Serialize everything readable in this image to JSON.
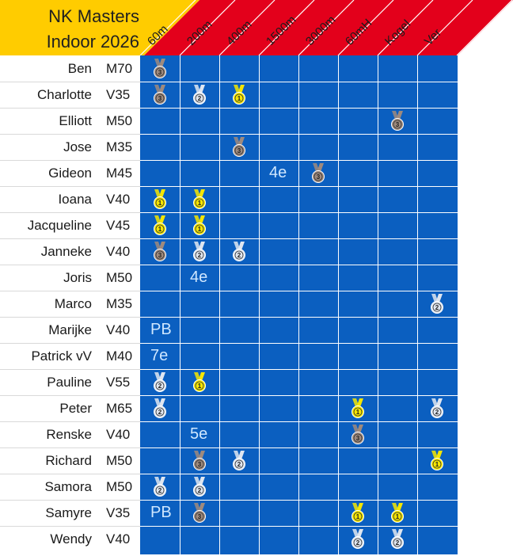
{
  "title": {
    "line1": "NK Masters",
    "line2": "Indoor 2026"
  },
  "columns": [
    "60m",
    "200m",
    "400m",
    "1500m",
    "3000m",
    "60mH",
    "Kogel",
    "Ver"
  ],
  "colors": {
    "title_bg": "#ffcc00",
    "header_bg": "#e3001b",
    "grid": "#0b5fc0",
    "gold": "#f5e600",
    "silver": "#dfe6f0",
    "bronze": "#9e8a7e"
  },
  "medal_labels": {
    "gold": "1",
    "silver": "2",
    "bronze": "3"
  },
  "athletes": [
    {
      "name": "Ben",
      "category": "M70",
      "results": [
        {
          "col": 0,
          "medal": "bronze"
        }
      ]
    },
    {
      "name": "Charlotte",
      "category": "V35",
      "results": [
        {
          "col": 0,
          "medal": "bronze"
        },
        {
          "col": 1,
          "medal": "silver"
        },
        {
          "col": 2,
          "medal": "gold"
        }
      ]
    },
    {
      "name": "Elliott",
      "category": "M50",
      "results": [
        {
          "col": 6,
          "medal": "bronze"
        }
      ]
    },
    {
      "name": "Jose",
      "category": "M35",
      "results": [
        {
          "col": 2,
          "medal": "bronze"
        }
      ]
    },
    {
      "name": "Gideon",
      "category": "M45",
      "results": [
        {
          "col": 3,
          "text": "4e"
        },
        {
          "col": 4,
          "medal": "bronze"
        }
      ]
    },
    {
      "name": "Ioana",
      "category": "V40",
      "results": [
        {
          "col": 0,
          "medal": "gold"
        },
        {
          "col": 1,
          "medal": "gold"
        }
      ]
    },
    {
      "name": "Jacqueline",
      "category": "V45",
      "results": [
        {
          "col": 0,
          "medal": "gold"
        },
        {
          "col": 1,
          "medal": "gold"
        }
      ]
    },
    {
      "name": "Janneke",
      "category": "V40",
      "results": [
        {
          "col": 0,
          "medal": "bronze"
        },
        {
          "col": 1,
          "medal": "silver"
        },
        {
          "col": 2,
          "medal": "silver"
        }
      ]
    },
    {
      "name": "Joris",
      "category": "M50",
      "results": [
        {
          "col": 1,
          "text": "4e"
        }
      ]
    },
    {
      "name": "Marco",
      "category": "M35",
      "results": [
        {
          "col": 7,
          "medal": "silver"
        }
      ]
    },
    {
      "name": "Marijke",
      "category": "V40",
      "results": [
        {
          "col": 0,
          "text": "PB"
        }
      ]
    },
    {
      "name": "Patrick vV",
      "category": "M40",
      "results": [
        {
          "col": 0,
          "text": "7e"
        }
      ]
    },
    {
      "name": "Pauline",
      "category": "V55",
      "results": [
        {
          "col": 0,
          "medal": "silver"
        },
        {
          "col": 1,
          "medal": "gold"
        }
      ]
    },
    {
      "name": "Peter",
      "category": "M65",
      "results": [
        {
          "col": 0,
          "medal": "silver"
        },
        {
          "col": 5,
          "medal": "gold"
        },
        {
          "col": 7,
          "medal": "silver"
        }
      ]
    },
    {
      "name": "Renske",
      "category": "V40",
      "results": [
        {
          "col": 1,
          "text": "5e"
        },
        {
          "col": 5,
          "medal": "bronze"
        }
      ]
    },
    {
      "name": "Richard",
      "category": "M50",
      "results": [
        {
          "col": 1,
          "medal": "bronze"
        },
        {
          "col": 2,
          "medal": "silver"
        },
        {
          "col": 7,
          "medal": "gold"
        }
      ]
    },
    {
      "name": "Samora",
      "category": "M50",
      "results": [
        {
          "col": 0,
          "medal": "silver"
        },
        {
          "col": 1,
          "medal": "silver"
        }
      ]
    },
    {
      "name": "Samyre",
      "category": "V35",
      "results": [
        {
          "col": 0,
          "text": "PB"
        },
        {
          "col": 1,
          "medal": "bronze"
        },
        {
          "col": 5,
          "medal": "gold"
        },
        {
          "col": 6,
          "medal": "gold"
        }
      ]
    },
    {
      "name": "Wendy",
      "category": "V40",
      "results": [
        {
          "col": 5,
          "medal": "silver"
        },
        {
          "col": 6,
          "medal": "silver"
        }
      ]
    }
  ]
}
